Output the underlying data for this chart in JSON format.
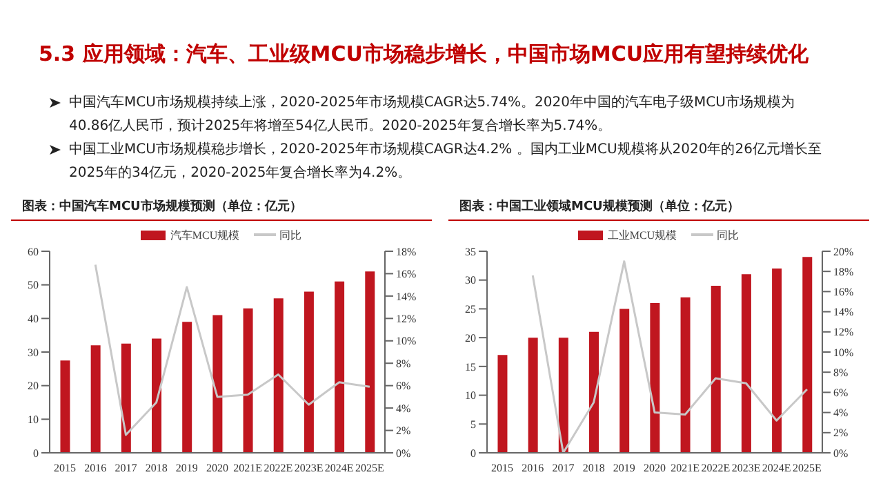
{
  "chart_data": [
    {
      "type": "other",
      "title": "5.3 应用领域：汽车、工业级MCU市场稳步增长，中国市场MCU应用有望持续优化",
      "annotations": [
        "中国汽车MCU市场规模持续上涨，2020-2025年市场规模CAGR达5.74%。2020年中国的汽车电子级MCU市场规模为40.86亿人民币，预计2025年将增至54亿人民币。2020-2025年复合增长率为5.74%。",
        "中国工业MCU市场规模稳步增长，2020-2025年市场规模CAGR达4.2% 。国内工业MCU规模将从2020年的26亿元增长至2025年的34亿元，2020-2025年复合增长率为4.2%。"
      ]
    },
    {
      "type": "bar",
      "title": "图表：中国汽车MCU市场规模预测（单位：亿元）",
      "categories": [
        "2015",
        "2016",
        "2017",
        "2018",
        "2019",
        "2020",
        "2021E",
        "2022E",
        "2023E",
        "2024E",
        "2025E"
      ],
      "series": [
        {
          "name": "汽车MCU规模",
          "type": "bar",
          "color": "#c0161f",
          "values": [
            27.5,
            32,
            32.5,
            34,
            39,
            41,
            43,
            46,
            48,
            51,
            54
          ]
        },
        {
          "name": "同比",
          "type": "line",
          "axis": "y2",
          "color": "#c8c8c8",
          "values": [
            null,
            16.8,
            1.6,
            4.5,
            14.8,
            5.0,
            5.2,
            7.0,
            4.3,
            6.3,
            5.9
          ]
        }
      ],
      "ylim": [
        0,
        60
      ],
      "yticks": [
        0,
        10,
        20,
        30,
        40,
        50,
        60
      ],
      "y2lim": [
        0,
        18
      ],
      "y2ticks": [
        {
          "value": 0,
          "label": "0%"
        },
        {
          "value": 2,
          "label": "2%"
        },
        {
          "value": 4,
          "label": "4%"
        },
        {
          "value": 6,
          "label": "6%"
        },
        {
          "value": 8,
          "label": "8%"
        },
        {
          "value": 10,
          "label": "10%"
        },
        {
          "value": 12,
          "label": "12%"
        },
        {
          "value": 14,
          "label": "14%"
        },
        {
          "value": 16,
          "label": "16%"
        },
        {
          "value": 18,
          "label": "18%"
        }
      ],
      "grid": false,
      "legend": "top",
      "marker": "none",
      "line_style": "solid"
    },
    {
      "type": "bar",
      "title": "图表：中国工业领域MCU规模预测（单位：亿元）",
      "categories": [
        "2015",
        "2016",
        "2017",
        "2018",
        "2019",
        "2020",
        "2021E",
        "2022E",
        "2023E",
        "2024E",
        "2025E"
      ],
      "series": [
        {
          "name": "工业MCU规模",
          "type": "bar",
          "color": "#c0161f",
          "values": [
            17,
            20,
            20,
            21,
            25,
            26,
            27,
            29,
            31,
            32,
            34
          ]
        },
        {
          "name": "同比",
          "type": "line",
          "axis": "y2",
          "color": "#c8c8c8",
          "values": [
            null,
            17.6,
            0,
            5,
            19,
            4,
            3.8,
            7.4,
            6.9,
            3.2,
            6.3
          ]
        }
      ],
      "ylim": [
        0,
        35
      ],
      "yticks": [
        0,
        5,
        10,
        15,
        20,
        25,
        30,
        35
      ],
      "y2lim": [
        0,
        20
      ],
      "y2ticks": [
        {
          "value": 0,
          "label": "0%"
        },
        {
          "value": 2,
          "label": "2%"
        },
        {
          "value": 4,
          "label": "4%"
        },
        {
          "value": 6,
          "label": "6%"
        },
        {
          "value": 8,
          "label": "8%"
        },
        {
          "value": 10,
          "label": "10%"
        },
        {
          "value": 12,
          "label": "12%"
        },
        {
          "value": 14,
          "label": "14%"
        },
        {
          "value": 16,
          "label": "16%"
        },
        {
          "value": 18,
          "label": "18%"
        },
        {
          "value": 20,
          "label": "20%"
        }
      ],
      "grid": false,
      "legend": "top",
      "marker": "none",
      "line_style": "solid"
    }
  ]
}
